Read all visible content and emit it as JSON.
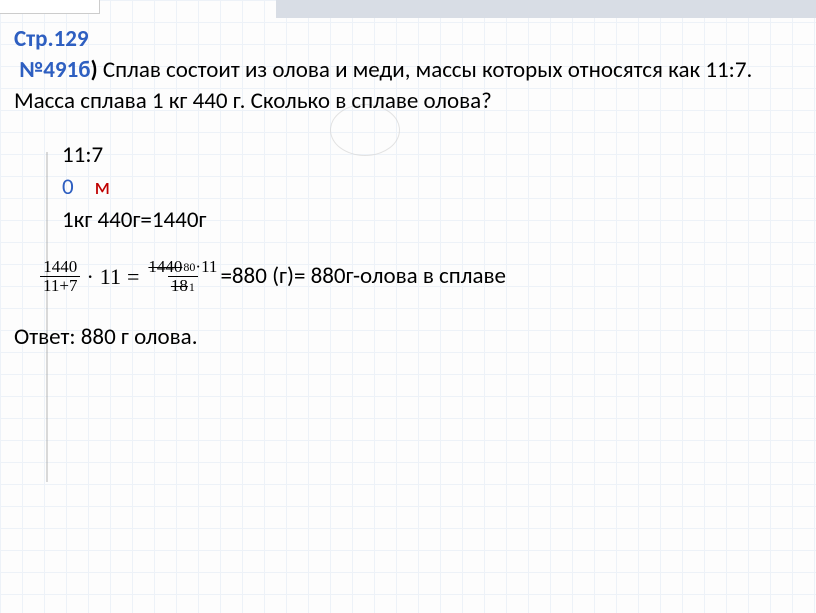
{
  "page_ref": "Стр.129",
  "problem_ref": "№491б",
  "problem_paren": ")",
  "problem_text": "  Сплав состоит из олова и меди, массы которых относятся как 11:7. Масса сплава 1 кг 440 г. Сколько в сплаве олова?",
  "work": {
    "ratio": "11:7",
    "letter_o": "0",
    "letter_m": "м",
    "mass_line": "1кг 440г=1440г"
  },
  "formula": {
    "frac1_num": "1440",
    "frac1_den": "11+7",
    "op1": "·",
    "mult": "11",
    "eq": "=",
    "frac2_num_strike": "1440",
    "frac2_num_sup": "80",
    "frac2_num_dot": "·11",
    "frac2_den_strike": "18",
    "frac2_den_sub": "1",
    "result": "=880 (г)= 880г-олова в сплаве"
  },
  "answer": "Ответ: 880 г олова.",
  "colors": {
    "link_blue": "#2e5fc1",
    "red": "#c00000",
    "text": "#000000",
    "grid": "#d0e0f0",
    "top_shade": "#d8dde5"
  }
}
